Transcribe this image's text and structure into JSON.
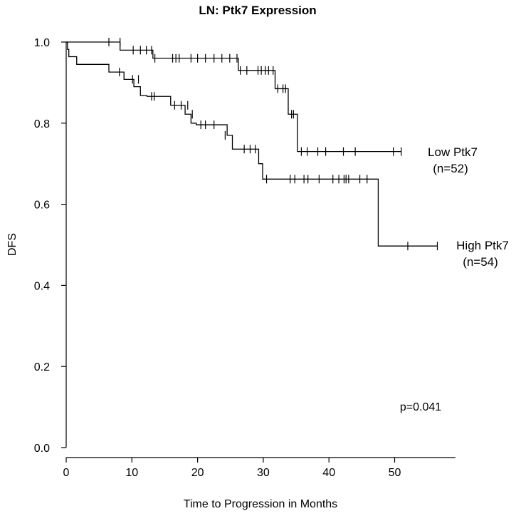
{
  "chart_data": {
    "type": "line",
    "subtype": "kaplan-meier",
    "title": "LN: Ptk7 Expression",
    "xlabel": "Time to Progression in Months",
    "ylabel": "DFS",
    "xlim": [
      0,
      57
    ],
    "ylim": [
      0,
      1.0
    ],
    "xticks": [
      "0",
      "10",
      "20",
      "30",
      "40",
      "50"
    ],
    "xtick_values": [
      0,
      10,
      20,
      30,
      40,
      50
    ],
    "yticks": [
      "0.0",
      "0.2",
      "0.4",
      "0.6",
      "0.8",
      "1.0"
    ],
    "ytick_values": [
      0,
      0.2,
      0.4,
      0.6,
      0.8,
      1.0
    ],
    "annotation": "p=0.041",
    "series": [
      {
        "name": "Low Ptk7",
        "name_line1": "Low Ptk7",
        "name_line2": "(n=52)",
        "n": 52,
        "steps": [
          [
            0,
            1.0
          ],
          [
            8.2,
            0.98
          ],
          [
            13.2,
            0.96
          ],
          [
            26.2,
            0.93
          ],
          [
            31.8,
            0.885
          ],
          [
            33.8,
            0.822
          ],
          [
            35.2,
            0.73
          ]
        ],
        "end_x": 51.0,
        "censored": [
          [
            6.5,
            1.0
          ],
          [
            8.2,
            1.0
          ],
          [
            10.2,
            0.98
          ],
          [
            11.3,
            0.98
          ],
          [
            12.2,
            0.98
          ],
          [
            13.0,
            0.98
          ],
          [
            13.5,
            0.96
          ],
          [
            16.2,
            0.96
          ],
          [
            16.7,
            0.96
          ],
          [
            17.2,
            0.96
          ],
          [
            19.0,
            0.96
          ],
          [
            20.0,
            0.96
          ],
          [
            21.2,
            0.96
          ],
          [
            22.5,
            0.96
          ],
          [
            23.7,
            0.96
          ],
          [
            24.9,
            0.96
          ],
          [
            26.0,
            0.96
          ],
          [
            26.5,
            0.93
          ],
          [
            27.5,
            0.93
          ],
          [
            29.2,
            0.93
          ],
          [
            29.7,
            0.93
          ],
          [
            30.3,
            0.93
          ],
          [
            30.8,
            0.93
          ],
          [
            31.5,
            0.93
          ],
          [
            32.2,
            0.885
          ],
          [
            33.0,
            0.885
          ],
          [
            33.4,
            0.885
          ],
          [
            34.3,
            0.822
          ],
          [
            34.6,
            0.822
          ],
          [
            35.8,
            0.73
          ],
          [
            36.7,
            0.73
          ],
          [
            38.3,
            0.73
          ],
          [
            39.5,
            0.73
          ],
          [
            42.2,
            0.73
          ],
          [
            44.0,
            0.73
          ],
          [
            49.8,
            0.73
          ],
          [
            51.0,
            0.73
          ]
        ]
      },
      {
        "name": "High Ptk7",
        "name_line1": "High Ptk7",
        "name_line2": "(n=54)",
        "n": 54,
        "steps": [
          [
            0,
            1.0
          ],
          [
            0.2,
            0.982
          ],
          [
            0.4,
            0.964
          ],
          [
            1.6,
            0.945
          ],
          [
            6.5,
            0.926
          ],
          [
            8.8,
            0.908
          ],
          [
            10.3,
            0.89
          ],
          [
            11.3,
            0.868
          ],
          [
            12.3,
            0.866
          ],
          [
            15.9,
            0.844
          ],
          [
            18.1,
            0.822
          ],
          [
            19.0,
            0.8
          ],
          [
            19.8,
            0.796
          ],
          [
            24.5,
            0.77
          ],
          [
            25.3,
            0.736
          ],
          [
            29.3,
            0.7
          ],
          [
            29.9,
            0.662
          ],
          [
            47.5,
            0.497
          ]
        ],
        "end_x": 56.5,
        "censored": [
          [
            8.1,
            0.926
          ],
          [
            10.1,
            0.908
          ],
          [
            11.0,
            0.908
          ],
          [
            13.0,
            0.866
          ],
          [
            13.4,
            0.866
          ],
          [
            16.5,
            0.844
          ],
          [
            17.5,
            0.844
          ],
          [
            18.5,
            0.844
          ],
          [
            19.2,
            0.822
          ],
          [
            20.5,
            0.796
          ],
          [
            21.2,
            0.796
          ],
          [
            22.5,
            0.796
          ],
          [
            24.2,
            0.77
          ],
          [
            27.1,
            0.736
          ],
          [
            28.0,
            0.736
          ],
          [
            28.8,
            0.736
          ],
          [
            30.5,
            0.662
          ],
          [
            34.1,
            0.662
          ],
          [
            34.8,
            0.662
          ],
          [
            36.2,
            0.662
          ],
          [
            36.8,
            0.662
          ],
          [
            38.5,
            0.662
          ],
          [
            40.6,
            0.662
          ],
          [
            41.5,
            0.662
          ],
          [
            42.3,
            0.662
          ],
          [
            42.6,
            0.662
          ],
          [
            43.0,
            0.662
          ],
          [
            44.7,
            0.662
          ],
          [
            45.8,
            0.662
          ],
          [
            52.0,
            0.497
          ],
          [
            56.5,
            0.497
          ]
        ]
      }
    ]
  }
}
